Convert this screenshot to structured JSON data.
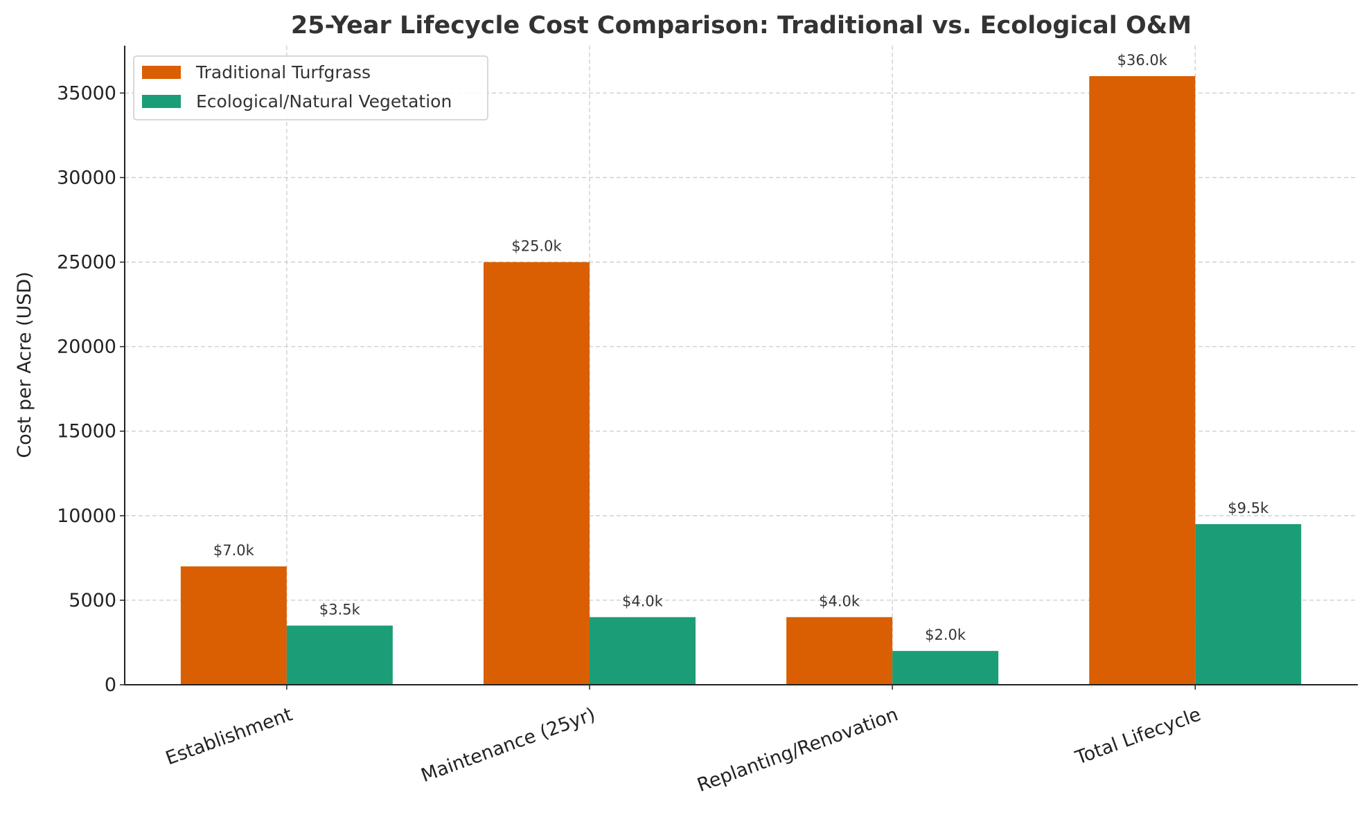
{
  "chart_data": {
    "type": "bar",
    "title": "25-Year Lifecycle Cost Comparison: Traditional vs. Ecological O&M",
    "xlabel": "",
    "ylabel": "Cost per Acre (USD)",
    "categories": [
      "Establishment",
      "Maintenance (25yr)",
      "Replanting/Renovation",
      "Total Lifecycle"
    ],
    "series": [
      {
        "name": "Traditional Turfgrass",
        "values": [
          7000,
          25000,
          4000,
          36000
        ],
        "labels": [
          "$7.0k",
          "$25.0k",
          "$4.0k",
          "$36.0k"
        ],
        "color": "#d95f02"
      },
      {
        "name": "Ecological/Natural Vegetation",
        "values": [
          3500,
          4000,
          2000,
          9500
        ],
        "labels": [
          "$3.5k",
          "$4.0k",
          "$2.0k",
          "$9.5k"
        ],
        "color": "#1b9e77"
      }
    ],
    "ylim": [
      0,
      37800
    ],
    "yticks": [
      0,
      5000,
      10000,
      15000,
      20000,
      25000,
      30000,
      35000
    ],
    "grid": true,
    "legend": "upper-left"
  }
}
